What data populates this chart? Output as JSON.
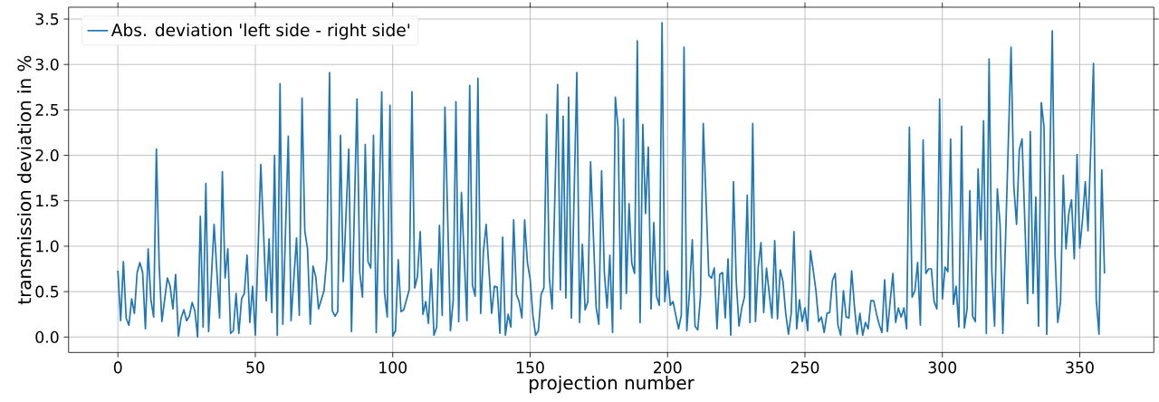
{
  "chart_data": {
    "type": "line",
    "xlabel": "projection number",
    "ylabel": "transmission deviation in %",
    "x": [
      0,
      1,
      2,
      3,
      4,
      5,
      6,
      7,
      8,
      9,
      10,
      11,
      12,
      13,
      14,
      15,
      16,
      17,
      18,
      19,
      20,
      21,
      22,
      23,
      24,
      25,
      26,
      27,
      28,
      29,
      30,
      31,
      32,
      33,
      34,
      35,
      37,
      38,
      39,
      40,
      41,
      42,
      43,
      44,
      45,
      46,
      47,
      48,
      49,
      50,
      52,
      54,
      55,
      56,
      57,
      58,
      59,
      60,
      62,
      63,
      65,
      66,
      67,
      68,
      69,
      70,
      71,
      72,
      73,
      75,
      76,
      77,
      78,
      79,
      80,
      81,
      82,
      84,
      85,
      87,
      88,
      89,
      90,
      91,
      92,
      93,
      94,
      96,
      97,
      98,
      99,
      100,
      101,
      102,
      103,
      104,
      106,
      107,
      108,
      109,
      110,
      111,
      112,
      113,
      114,
      115,
      116,
      117,
      118,
      119,
      121,
      122,
      123,
      124,
      125,
      127,
      128,
      129,
      130,
      131,
      132,
      133,
      134,
      136,
      137,
      138,
      139,
      140,
      141,
      142,
      143,
      144,
      145,
      146,
      147,
      148,
      149,
      150,
      151,
      152,
      153,
      154,
      155,
      156,
      157,
      158,
      160,
      161,
      162,
      163,
      164,
      165,
      167,
      168,
      169,
      170,
      171,
      172,
      174,
      175,
      176,
      177,
      178,
      179,
      180,
      181,
      182,
      183,
      184,
      185,
      186,
      187,
      188,
      189,
      190,
      191,
      192,
      193,
      194,
      195,
      196,
      197,
      198,
      199,
      200,
      201,
      202,
      204,
      205,
      206,
      207,
      208,
      209,
      210,
      211,
      212,
      213,
      215,
      216,
      217,
      218,
      219,
      220,
      221,
      222,
      223,
      224,
      225,
      226,
      227,
      228,
      229,
      230,
      231,
      232,
      233,
      234,
      235,
      236,
      237,
      238,
      239,
      240,
      241,
      242,
      243,
      244,
      245,
      246,
      247,
      248,
      249,
      250,
      251,
      252,
      253,
      254,
      255,
      256,
      257,
      258,
      259,
      260,
      261,
      262,
      263,
      264,
      265,
      266,
      267,
      268,
      269,
      270,
      271,
      272,
      273,
      274,
      275,
      276,
      277,
      278,
      279,
      280,
      281,
      282,
      283,
      284,
      285,
      286,
      287,
      288,
      289,
      290,
      291,
      292,
      293,
      294,
      295,
      296,
      297,
      298,
      299,
      300,
      301,
      302,
      303,
      304,
      305,
      306,
      307,
      308,
      309,
      310,
      311,
      312,
      313,
      314,
      315,
      316,
      317,
      318,
      319,
      320,
      321,
      322,
      325,
      326,
      327,
      328,
      329,
      331,
      332,
      333,
      334,
      335,
      336,
      337,
      338,
      340,
      341,
      342,
      343,
      344,
      345,
      346,
      347,
      348,
      349,
      350,
      351,
      352,
      353,
      354,
      355,
      356,
      357,
      358,
      359
    ],
    "series": [
      {
        "name": "Abs. deviation 'left side - right side'",
        "color": "#1f77b4",
        "values": [
          0.73,
          0.18,
          0.83,
          0.21,
          0.13,
          0.42,
          0.26,
          0.71,
          0.82,
          0.71,
          0.09,
          0.97,
          0.41,
          0.22,
          2.07,
          0.8,
          0.17,
          0.41,
          0.65,
          0.56,
          0.31,
          0.69,
          0.01,
          0.21,
          0.3,
          0.18,
          0.23,
          0.38,
          0.29,
          0.0,
          1.33,
          0.11,
          1.69,
          0.06,
          0.65,
          1.24,
          0.21,
          1.82,
          0.65,
          0.97,
          0.04,
          0.07,
          0.48,
          0.04,
          0.42,
          0.48,
          0.9,
          0.16,
          0.56,
          0.02,
          1.9,
          0.4,
          1.08,
          0.27,
          2.0,
          0.02,
          2.79,
          0.14,
          2.21,
          0.18,
          1.09,
          0.24,
          2.63,
          1.17,
          0.97,
          0.14,
          0.78,
          0.66,
          0.31,
          0.51,
          0.86,
          2.91,
          0.29,
          0.23,
          0.28,
          2.22,
          0.61,
          2.07,
          0.06,
          2.62,
          0.71,
          0.44,
          2.12,
          0.83,
          0.76,
          2.22,
          0.05,
          2.7,
          0.49,
          0.22,
          2.55,
          0.01,
          0.07,
          0.85,
          0.28,
          0.3,
          0.52,
          2.7,
          0.54,
          0.67,
          1.16,
          0.25,
          0.39,
          0.15,
          0.75,
          0.02,
          0.11,
          1.23,
          0.24,
          2.53,
          0.07,
          0.4,
          2.59,
          0.17,
          1.59,
          0.18,
          2.77,
          0.57,
          0.45,
          2.85,
          0.26,
          0.94,
          1.24,
          0.26,
          0.56,
          0.55,
          0.04,
          1.1,
          0.02,
          0.25,
          0.11,
          1.29,
          0.47,
          0.39,
          0.21,
          1.29,
          0.82,
          0.64,
          0.24,
          0.02,
          0.07,
          0.47,
          0.54,
          2.45,
          0.65,
          0.31,
          2.78,
          0.52,
          2.43,
          0.43,
          2.64,
          0.21,
          2.91,
          0.16,
          1.02,
          0.3,
          0.39,
          1.93,
          0.33,
          0.14,
          1.83,
          0.71,
          0.32,
          0.9,
          0.05,
          2.64,
          2.3,
          0.31,
          2.4,
          0.48,
          1.47,
          0.81,
          0.7,
          3.26,
          0.16,
          2.34,
          1.36,
          2.09,
          0.31,
          1.26,
          0.45,
          0.35,
          3.46,
          0.39,
          0.73,
          0.35,
          0.39,
          0.09,
          0.24,
          3.19,
          0.07,
          0.51,
          1.07,
          0.12,
          0.08,
          0.46,
          2.35,
          0.68,
          0.65,
          0.76,
          0.09,
          0.69,
          0.71,
          0.21,
          0.86,
          0.02,
          1.71,
          0.61,
          0.12,
          0.32,
          0.44,
          1.56,
          0.16,
          2.35,
          0.17,
          0.77,
          1.04,
          0.27,
          0.76,
          0.48,
          0.21,
          1.06,
          0.2,
          0.74,
          0.61,
          0.26,
          0.03,
          0.26,
          1.16,
          0.09,
          0.41,
          0.17,
          0.32,
          0.07,
          0.95,
          0.74,
          0.51,
          0.17,
          0.22,
          0.05,
          0.26,
          0.27,
          0.62,
          0.7,
          0.13,
          0.02,
          0.51,
          0.22,
          0.21,
          0.73,
          0.34,
          0.03,
          0.26,
          0.02,
          0.16,
          0.09,
          0.4,
          0.4,
          0.26,
          0.14,
          0.05,
          0.63,
          0.06,
          0.39,
          0.7,
          0.16,
          0.32,
          0.22,
          0.32,
          0.09,
          2.31,
          0.44,
          0.51,
          0.82,
          0.13,
          2.17,
          0.7,
          0.75,
          0.75,
          0.39,
          0.31,
          2.62,
          0.42,
          0.77,
          0.72,
          2.18,
          0.36,
          0.56,
          0.11,
          2.32,
          0.1,
          0.31,
          1.61,
          0.23,
          0.17,
          1.85,
          1.07,
          2.38,
          0.04,
          3.06,
          0.72,
          0.12,
          1.63,
          1.24,
          0.04,
          3.19,
          1.66,
          1.24,
          2.06,
          2.18,
          0.37,
          2.26,
          0.48,
          1.54,
          0.12,
          2.58,
          2.31,
          0.03,
          3.37,
          0.92,
          0.16,
          0.39,
          1.78,
          0.97,
          1.36,
          1.51,
          0.86,
          2.01,
          0.98,
          1.29,
          1.71,
          1.17,
          2.07,
          3.01,
          0.41,
          0.03,
          1.84,
          0.7
        ]
      }
    ],
    "xlim": [
      -17.95,
      376.95
    ],
    "ylim": [
      -0.17,
      3.63
    ],
    "xticks": [
      0,
      50,
      100,
      150,
      200,
      250,
      300,
      350
    ],
    "yticks": [
      {
        "value": 0,
        "label": "0.0"
      },
      {
        "value": 0.5,
        "label": "0.5"
      },
      {
        "value": 1,
        "label": "1.0"
      },
      {
        "value": 1.5,
        "label": "1.5"
      },
      {
        "value": 2,
        "label": "2.0"
      },
      {
        "value": 2.5,
        "label": "2.5"
      },
      {
        "value": 3,
        "label": "3.0"
      },
      {
        "value": 3.5,
        "label": "3.5"
      }
    ],
    "grid": true,
    "legend": "top left"
  }
}
